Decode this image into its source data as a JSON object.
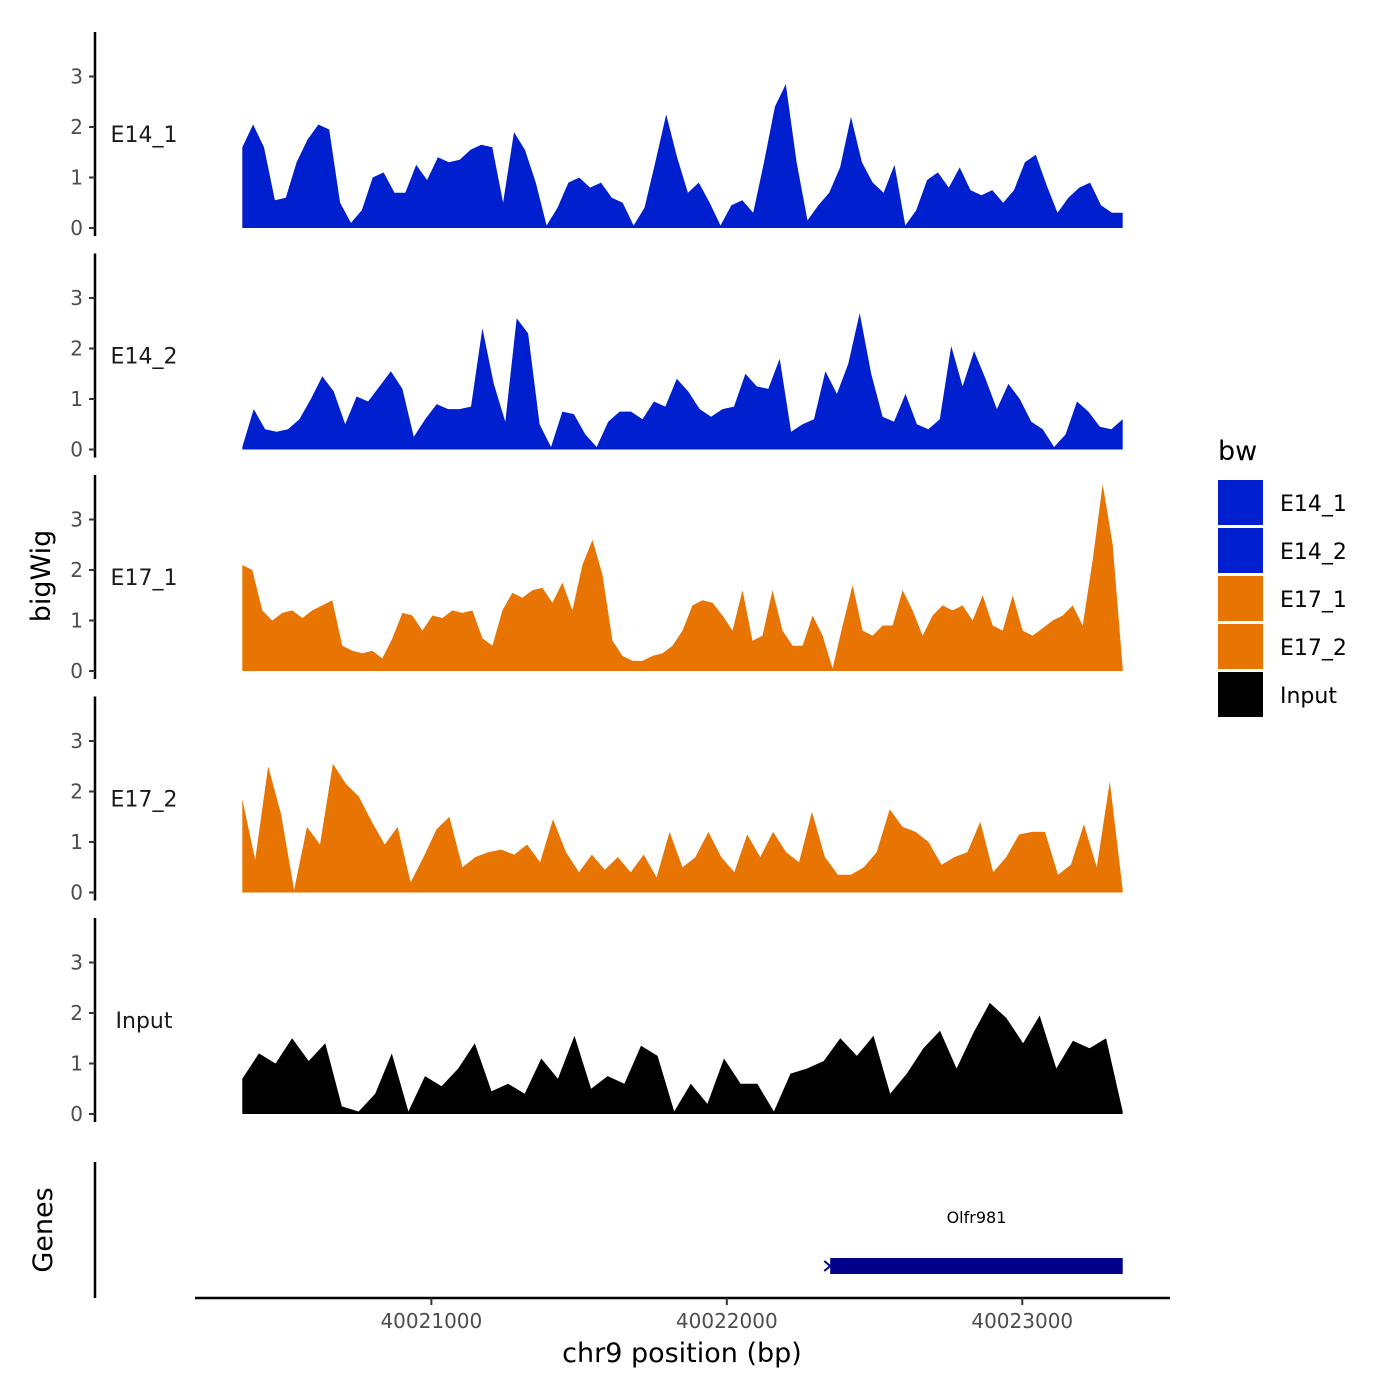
{
  "chart_data": {
    "type": "area",
    "chromosome": "chr9",
    "xlabel": "chr9 position (bp)",
    "ylabel": "bigWig",
    "gene_track_label": "Genes",
    "xlim": [
      40020200,
      40023500
    ],
    "data_range": [
      40020360,
      40023340
    ],
    "xticks": [
      {
        "value": 40021000,
        "label": "40021000"
      },
      {
        "value": 40022000,
        "label": "40022000"
      },
      {
        "value": 40023000,
        "label": "40023000"
      }
    ],
    "ylim": [
      0,
      3.9
    ],
    "yticks": [
      {
        "value": 0,
        "label": "0"
      },
      {
        "value": 1,
        "label": "1"
      },
      {
        "value": 2,
        "label": "2"
      },
      {
        "value": 3,
        "label": "3"
      }
    ],
    "series": [
      {
        "name": "E14_1",
        "color": "#001FCF",
        "values": [
          1.6,
          2.05,
          1.6,
          0.55,
          0.6,
          1.3,
          1.75,
          2.05,
          1.95,
          0.5,
          0.1,
          0.35,
          1.0,
          1.1,
          0.7,
          0.7,
          1.25,
          0.95,
          1.4,
          1.3,
          1.35,
          1.55,
          1.65,
          1.6,
          0.5,
          1.9,
          1.55,
          0.9,
          0.05,
          0.4,
          0.9,
          1.0,
          0.8,
          0.9,
          0.6,
          0.5,
          0.05,
          0.4,
          1.3,
          2.25,
          1.4,
          0.7,
          0.9,
          0.5,
          0.05,
          0.45,
          0.55,
          0.3,
          1.3,
          2.4,
          2.85,
          1.3,
          0.15,
          0.45,
          0.7,
          1.2,
          2.2,
          1.3,
          0.9,
          0.7,
          1.25,
          0.05,
          0.35,
          0.95,
          1.1,
          0.8,
          1.2,
          0.75,
          0.65,
          0.75,
          0.5,
          0.75,
          1.3,
          1.45,
          0.85,
          0.3,
          0.6,
          0.8,
          0.9,
          0.45,
          0.3,
          0.3
        ]
      },
      {
        "name": "E14_2",
        "color": "#001FCF",
        "values": [
          0.05,
          0.8,
          0.4,
          0.35,
          0.4,
          0.6,
          1.0,
          1.45,
          1.15,
          0.5,
          1.05,
          0.95,
          1.25,
          1.55,
          1.2,
          0.25,
          0.6,
          0.9,
          0.8,
          0.8,
          0.85,
          2.4,
          1.3,
          0.55,
          2.6,
          2.3,
          0.5,
          0.05,
          0.75,
          0.7,
          0.3,
          0.05,
          0.55,
          0.75,
          0.75,
          0.6,
          0.95,
          0.85,
          1.4,
          1.15,
          0.8,
          0.65,
          0.8,
          0.85,
          1.5,
          1.25,
          1.2,
          1.8,
          0.35,
          0.5,
          0.6,
          1.55,
          1.1,
          1.7,
          2.7,
          1.5,
          0.65,
          0.55,
          1.1,
          0.5,
          0.4,
          0.6,
          2.05,
          1.25,
          1.95,
          1.4,
          0.8,
          1.3,
          1.0,
          0.55,
          0.4,
          0.05,
          0.3,
          0.95,
          0.75,
          0.45,
          0.4,
          0.6
        ]
      },
      {
        "name": "E17_1",
        "color": "#E87502",
        "values": [
          2.1,
          2.0,
          1.2,
          1.0,
          1.15,
          1.2,
          1.05,
          1.2,
          1.3,
          1.4,
          0.5,
          0.4,
          0.35,
          0.4,
          0.25,
          0.65,
          1.15,
          1.1,
          0.8,
          1.1,
          1.05,
          1.2,
          1.15,
          1.2,
          0.65,
          0.5,
          1.2,
          1.55,
          1.45,
          1.6,
          1.65,
          1.35,
          1.75,
          1.2,
          2.1,
          2.6,
          1.9,
          0.6,
          0.3,
          0.2,
          0.2,
          0.3,
          0.35,
          0.5,
          0.8,
          1.3,
          1.4,
          1.35,
          1.1,
          0.8,
          1.6,
          0.6,
          0.7,
          1.6,
          0.8,
          0.5,
          0.5,
          1.1,
          0.7,
          0.05,
          0.9,
          1.7,
          0.8,
          0.7,
          0.9,
          0.9,
          1.6,
          1.2,
          0.7,
          1.1,
          1.3,
          1.2,
          1.3,
          1.0,
          1.5,
          0.9,
          0.8,
          1.5,
          0.8,
          0.7,
          0.85,
          1.0,
          1.1,
          1.3,
          0.9,
          2.2,
          3.7,
          2.5,
          0.05
        ]
      },
      {
        "name": "E17_2",
        "color": "#E87502",
        "values": [
          1.85,
          0.65,
          2.5,
          1.55,
          0.05,
          1.3,
          0.95,
          2.55,
          2.15,
          1.9,
          1.4,
          0.95,
          1.3,
          0.2,
          0.7,
          1.25,
          1.5,
          0.5,
          0.7,
          0.8,
          0.85,
          0.75,
          0.95,
          0.6,
          1.45,
          0.8,
          0.4,
          0.75,
          0.45,
          0.7,
          0.4,
          0.75,
          0.3,
          1.2,
          0.5,
          0.7,
          1.2,
          0.7,
          0.4,
          1.15,
          0.7,
          1.2,
          0.8,
          0.6,
          1.6,
          0.7,
          0.35,
          0.35,
          0.5,
          0.8,
          1.65,
          1.3,
          1.2,
          1.0,
          0.55,
          0.7,
          0.8,
          1.4,
          0.4,
          0.7,
          1.15,
          1.2,
          1.2,
          0.35,
          0.55,
          1.35,
          0.5,
          2.2,
          0.05
        ]
      },
      {
        "name": "Input",
        "color": "#000000",
        "values": [
          0.7,
          1.2,
          1.0,
          1.5,
          1.05,
          1.4,
          0.15,
          0.05,
          0.4,
          1.2,
          0.05,
          0.75,
          0.55,
          0.9,
          1.4,
          0.45,
          0.6,
          0.4,
          1.1,
          0.7,
          1.55,
          0.5,
          0.75,
          0.6,
          1.35,
          1.15,
          0.05,
          0.6,
          0.2,
          1.1,
          0.6,
          0.6,
          0.05,
          0.8,
          0.9,
          1.05,
          1.5,
          1.15,
          1.55,
          0.4,
          0.8,
          1.3,
          1.65,
          0.9,
          1.6,
          2.2,
          1.9,
          1.4,
          1.95,
          0.9,
          1.45,
          1.3,
          1.5,
          0.05
        ]
      }
    ],
    "genes": [
      {
        "name": "Olfr981",
        "start": 40022350,
        "end": 40023340,
        "color": "#00008B"
      }
    ]
  },
  "legend": {
    "title": "bw",
    "entries": [
      {
        "label": "E14_1",
        "color": "#001FCF"
      },
      {
        "label": "E14_2",
        "color": "#001FCF"
      },
      {
        "label": "E17_1",
        "color": "#E87502"
      },
      {
        "label": "E17_2",
        "color": "#E87502"
      },
      {
        "label": "Input",
        "color": "#000000"
      }
    ]
  }
}
